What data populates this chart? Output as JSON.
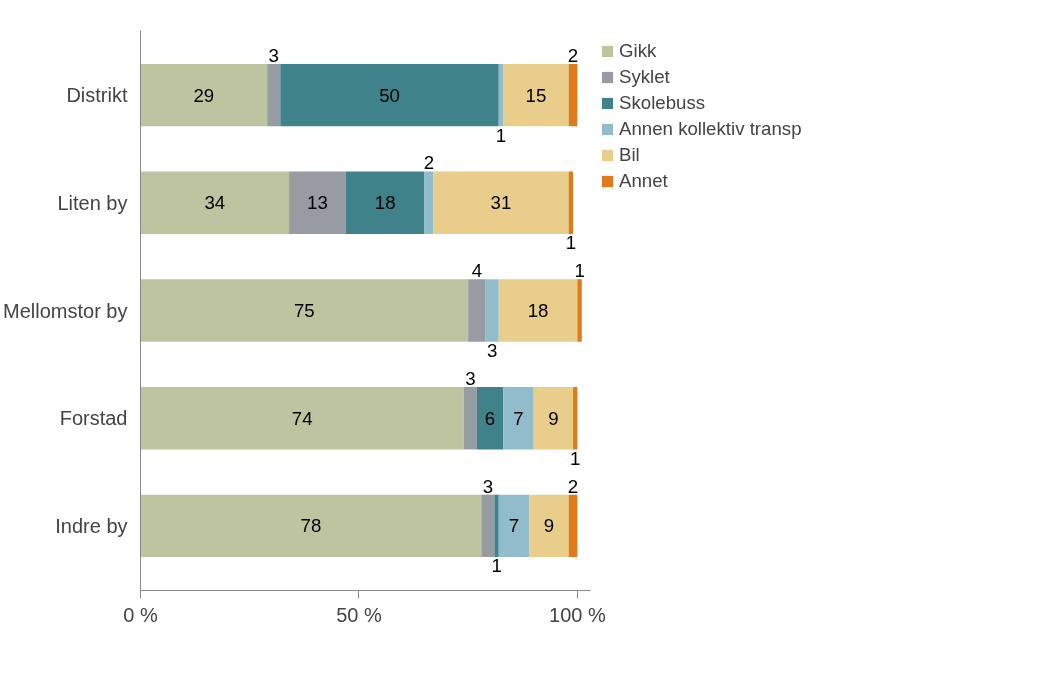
{
  "chart_data": {
    "type": "bar",
    "orientation": "horizontal",
    "stacked": true,
    "categories": [
      "Distrikt",
      "Liten by",
      "Mellomstor by",
      "Forstad",
      "Indre by"
    ],
    "series": [
      {
        "name": "Gikk",
        "color": "#bfc4a0",
        "values": [
          29,
          34,
          75,
          74,
          78
        ]
      },
      {
        "name": "Syklet",
        "color": "#979ca3",
        "values": [
          3,
          13,
          4,
          3,
          3
        ]
      },
      {
        "name": "Skolebuss",
        "color": "#3f8289",
        "values": [
          50,
          18,
          null,
          6,
          1
        ]
      },
      {
        "name": "Annen kollektiv transp",
        "color": "#90bccc",
        "values": [
          1,
          2,
          3,
          7,
          7
        ]
      },
      {
        "name": "Bil",
        "color": "#e8cd8b",
        "values": [
          15,
          31,
          18,
          9,
          9
        ]
      },
      {
        "name": "Annet",
        "color": "#e07b1c",
        "values": [
          2,
          1,
          1,
          1,
          2
        ]
      }
    ],
    "xlim": [
      0,
      103
    ],
    "xticks": [
      {
        "value": 0,
        "label": "0 %"
      },
      {
        "value": 50,
        "label": "50 %"
      },
      {
        "value": 100,
        "label": "100 %"
      }
    ],
    "data_labels": true,
    "legend": "right",
    "grid": false
  }
}
